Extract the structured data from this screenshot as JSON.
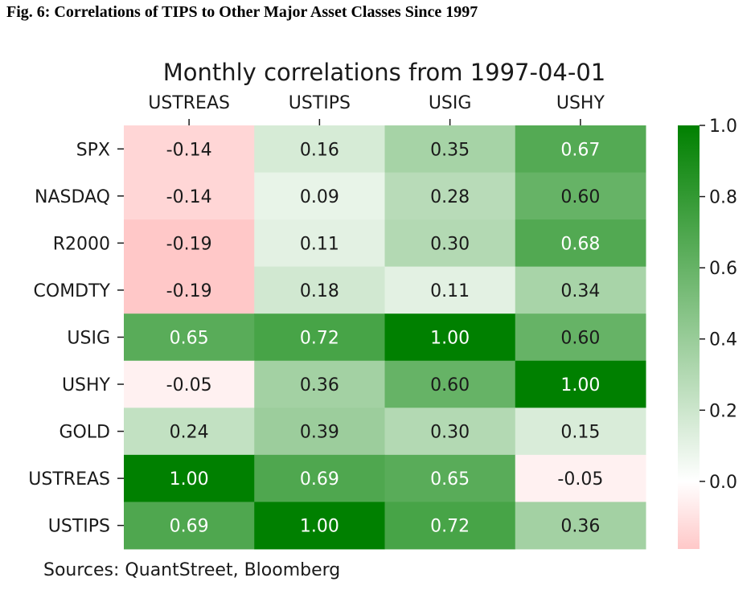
{
  "figure": {
    "title": "Fig. 6: Correlations of TIPS to Other Major Asset Classes Since 1997",
    "source": "Sources: QuantStreet, Bloomberg"
  },
  "chart_data": {
    "type": "heatmap",
    "title": "Monthly correlations from 1997-04-01",
    "columns": [
      "USTREAS",
      "USTIPS",
      "USIG",
      "USHY"
    ],
    "rows": [
      "SPX",
      "NASDAQ",
      "R2000",
      "COMDTY",
      "USIG",
      "USHY",
      "GOLD",
      "USTREAS",
      "USTIPS"
    ],
    "values": [
      [
        -0.14,
        0.16,
        0.35,
        0.67
      ],
      [
        -0.14,
        0.09,
        0.28,
        0.6
      ],
      [
        -0.19,
        0.11,
        0.3,
        0.68
      ],
      [
        -0.19,
        0.18,
        0.11,
        0.34
      ],
      [
        0.65,
        0.72,
        1.0,
        0.6
      ],
      [
        -0.05,
        0.36,
        0.6,
        1.0
      ],
      [
        0.24,
        0.39,
        0.3,
        0.15
      ],
      [
        1.0,
        0.69,
        0.65,
        -0.05
      ],
      [
        0.69,
        1.0,
        0.72,
        0.36
      ]
    ],
    "value_format": "2 decimals",
    "colorbar": {
      "min": -0.19,
      "max": 1.0,
      "ticks": [
        "0.0",
        "0.2",
        "0.4",
        "0.6",
        "0.8",
        "1.0"
      ],
      "tick_values": [
        0.0,
        0.2,
        0.4,
        0.6,
        0.8,
        1.0
      ],
      "placement": "right"
    },
    "colors": {
      "negative": "#ffc8c8",
      "zero": "#ffffff",
      "positive": "#008000"
    },
    "column_labels_position": "top"
  }
}
